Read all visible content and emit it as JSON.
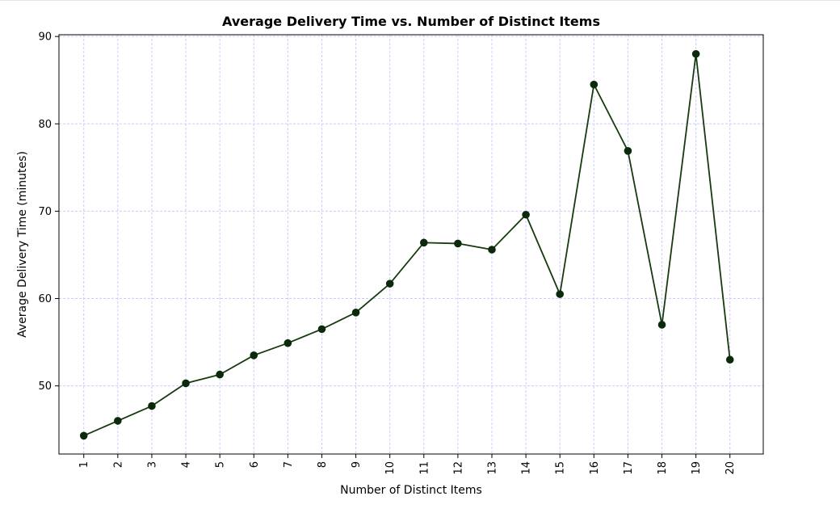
{
  "chart_data": {
    "type": "line",
    "title": "Average Delivery Time vs. Number of Distinct Items",
    "xlabel": "Number of Distinct Items",
    "ylabel": "Average Delivery Time (minutes)",
    "categories": [
      "1",
      "2",
      "3",
      "4",
      "5",
      "6",
      "7",
      "8",
      "9",
      "10",
      "11",
      "12",
      "13",
      "14",
      "15",
      "16",
      "17",
      "18",
      "19",
      "20"
    ],
    "x": [
      1,
      2,
      3,
      4,
      5,
      6,
      7,
      8,
      9,
      10,
      11,
      12,
      13,
      14,
      15,
      16,
      17,
      18,
      19,
      20
    ],
    "series": [
      {
        "values": [
          44.3,
          46.0,
          47.7,
          50.3,
          51.3,
          53.5,
          54.9,
          56.5,
          58.4,
          61.7,
          66.4,
          66.3,
          65.6,
          69.6,
          60.5,
          84.5,
          76.9,
          57.0,
          88.0,
          53.0
        ],
        "color": "#173a0f",
        "marker_color": "#0b2a0b"
      }
    ],
    "xlim": [
      0.27,
      20.98
    ],
    "ylim": [
      42.2,
      90.2
    ],
    "yticks": [
      50,
      60,
      70,
      80,
      90
    ],
    "x_tick_rotation": "vertical",
    "grid": true,
    "grid_color": "#ccccff",
    "legend": false
  }
}
